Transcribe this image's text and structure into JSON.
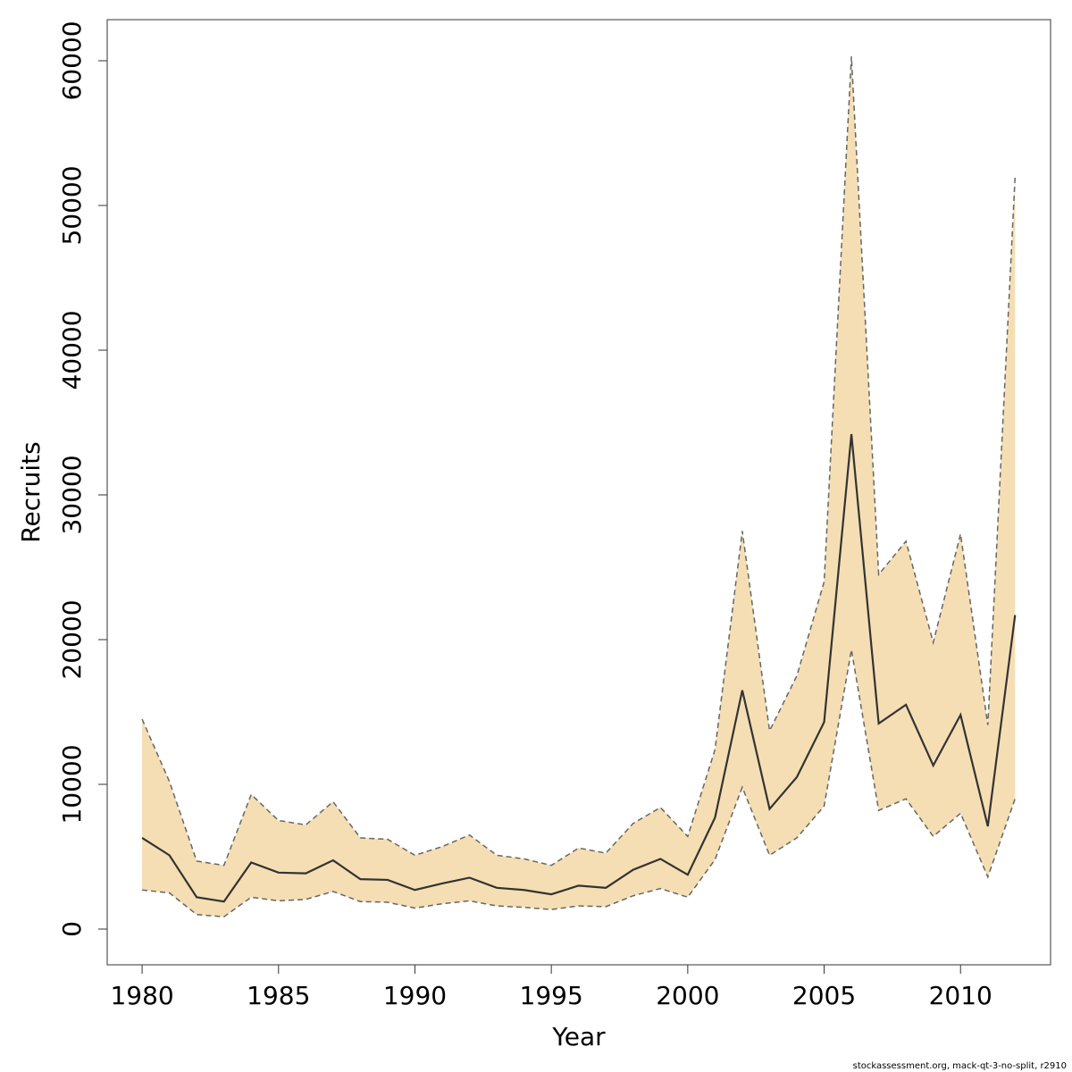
{
  "chart_data": {
    "type": "line",
    "xlabel": "Year",
    "ylabel": "Recruits",
    "footnote": "stockassessment.org, mack-qt-3-no-split, r2910",
    "x": [
      1980,
      1981,
      1982,
      1983,
      1984,
      1985,
      1986,
      1987,
      1988,
      1989,
      1990,
      1991,
      1992,
      1993,
      1994,
      1995,
      1996,
      1997,
      1998,
      1999,
      2000,
      2001,
      2002,
      2003,
      2004,
      2005,
      2006,
      2007,
      2008,
      2009,
      2010,
      2011,
      2012
    ],
    "values": [
      6300,
      5100,
      2200,
      1900,
      4600,
      3900,
      3850,
      4750,
      3450,
      3400,
      2700,
      3150,
      3550,
      2850,
      2700,
      2400,
      3000,
      2850,
      4100,
      4850,
      3750,
      7700,
      16500,
      8300,
      10500,
      14300,
      34200,
      14200,
      15500,
      11300,
      14800,
      7100,
      21700
    ],
    "lower": [
      2700,
      2500,
      1000,
      850,
      2200,
      1950,
      2050,
      2600,
      1900,
      1850,
      1450,
      1750,
      1950,
      1600,
      1500,
      1350,
      1600,
      1550,
      2300,
      2800,
      2200,
      4800,
      9800,
      5100,
      6300,
      8500,
      19300,
      8200,
      9000,
      6400,
      8000,
      3600,
      9000
    ],
    "upper": [
      14500,
      10200,
      4700,
      4400,
      9300,
      7500,
      7200,
      8800,
      6300,
      6200,
      5100,
      5700,
      6500,
      5100,
      4850,
      4400,
      5600,
      5250,
      7300,
      8400,
      6400,
      12400,
      27500,
      13700,
      17500,
      24000,
      60300,
      24500,
      26800,
      19800,
      27300,
      14100,
      52000
    ],
    "color": "#333333",
    "band_color": "#f5deb3",
    "bound_color": "#666666",
    "xlim": [
      1978.72,
      2013.3
    ],
    "xticks": [
      1980,
      1985,
      1990,
      1995,
      2000,
      2005,
      2010
    ],
    "ylim": [
      -2470,
      62840
    ],
    "yticks": [
      0,
      10000,
      20000,
      30000,
      40000,
      50000,
      60000
    ]
  }
}
